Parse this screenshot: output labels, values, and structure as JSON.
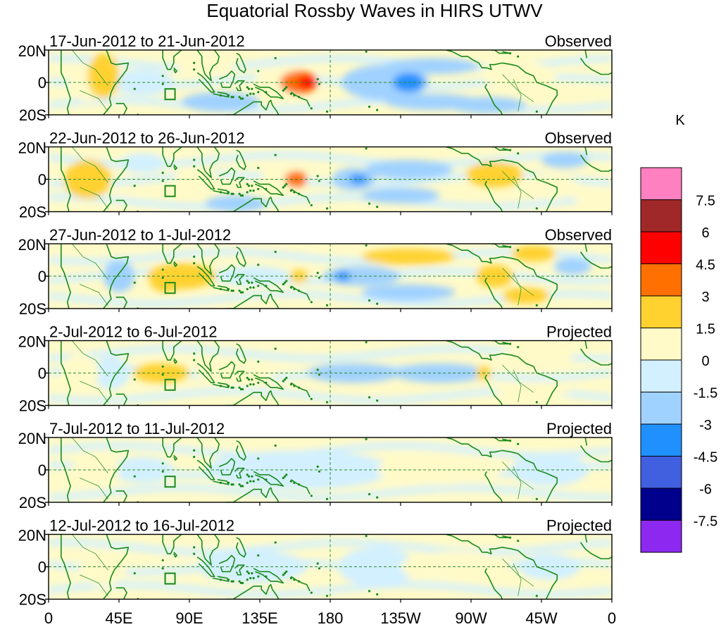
{
  "title": "Equatorial Rossby Waves in HIRS UTWV",
  "units": "K",
  "lat_labels": [
    "20N",
    "0",
    "20S"
  ],
  "lon_labels": [
    "0",
    "45E",
    "90E",
    "135E",
    "180",
    "135W",
    "90W",
    "45W",
    "0"
  ],
  "colorbar": {
    "labels": [
      "7.5",
      "6",
      "4.5",
      "3",
      "1.5",
      "0",
      "-1.5",
      "-3",
      "-4.5",
      "-6",
      "-7.5"
    ],
    "colors": [
      "#ff80c0",
      "#a02828",
      "#ff0000",
      "#ff7000",
      "#ffd230",
      "#fffac8",
      "#d2f0ff",
      "#a0d2ff",
      "#2090ff",
      "#4060e0",
      "#00008c",
      "#8c28f0"
    ]
  },
  "panels": [
    {
      "date": "17-Jun-2012 to 21-Jun-2012",
      "type": "Observed",
      "blobs": [
        {
          "lon": 150,
          "lat": 0,
          "rlon": 18,
          "rlat": 9,
          "value": 1.2
        },
        {
          "lon": 160,
          "lat": 0,
          "rlon": 12,
          "rlat": 7,
          "value": 3.6
        },
        {
          "lon": 165,
          "lat": 0,
          "rlon": 6,
          "rlat": 4,
          "value": 5.2
        },
        {
          "lon": 215,
          "lat": 0,
          "rlon": 28,
          "rlat": 11,
          "value": -2.2
        },
        {
          "lon": 230,
          "lat": 0,
          "rlon": 10,
          "rlat": 6,
          "value": -3.8
        },
        {
          "lon": 245,
          "lat": 10,
          "rlon": 30,
          "rlat": 5,
          "value": -1.6
        },
        {
          "lon": 245,
          "lat": -12,
          "rlon": 30,
          "rlat": 5,
          "value": -1.6
        },
        {
          "lon": 35,
          "lat": 4,
          "rlon": 10,
          "rlat": 14,
          "value": 1.8
        },
        {
          "lon": 25,
          "lat": 0,
          "rlon": 12,
          "rlat": 12,
          "value": 1.0
        },
        {
          "lon": 100,
          "lat": 12,
          "rlon": 20,
          "rlat": 6,
          "value": 0.9
        },
        {
          "lon": 110,
          "lat": -12,
          "rlon": 25,
          "rlat": 6,
          "value": -1.6
        },
        {
          "lon": 300,
          "lat": 5,
          "rlon": 25,
          "rlat": 8,
          "value": 0.9
        },
        {
          "lon": 60,
          "lat": 0,
          "rlon": 20,
          "rlat": 8,
          "value": -0.9
        },
        {
          "lon": 280,
          "lat": -14,
          "rlon": 25,
          "rlat": 5,
          "value": -1.6
        }
      ]
    },
    {
      "date": "22-Jun-2012 to 26-Jun-2012",
      "type": "Observed",
      "blobs": [
        {
          "lon": 150,
          "lat": 0,
          "rlon": 14,
          "rlat": 8,
          "value": 1.0
        },
        {
          "lon": 158,
          "lat": 0,
          "rlon": 7,
          "rlat": 5,
          "value": 3.6
        },
        {
          "lon": 195,
          "lat": 0,
          "rlon": 14,
          "rlat": 7,
          "value": -2.0
        },
        {
          "lon": 198,
          "lat": 0,
          "rlon": 6,
          "rlat": 3,
          "value": -3.4
        },
        {
          "lon": 230,
          "lat": 6,
          "rlon": 28,
          "rlat": 6,
          "value": -1.6
        },
        {
          "lon": 225,
          "lat": -10,
          "rlon": 25,
          "rlat": 5,
          "value": -1.6
        },
        {
          "lon": 25,
          "lat": 0,
          "rlon": 15,
          "rlat": 12,
          "value": 1.8
        },
        {
          "lon": 95,
          "lat": 0,
          "rlon": 15,
          "rlat": 5,
          "value": 1.2
        },
        {
          "lon": 285,
          "lat": 3,
          "rlon": 18,
          "rlat": 8,
          "value": 1.8
        },
        {
          "lon": 320,
          "lat": -5,
          "rlon": 20,
          "rlat": 8,
          "value": 1.0
        },
        {
          "lon": 60,
          "lat": 10,
          "rlon": 15,
          "rlat": 6,
          "value": -0.9
        },
        {
          "lon": 120,
          "lat": -15,
          "rlon": 20,
          "rlat": 5,
          "value": -1.6
        },
        {
          "lon": 330,
          "lat": 12,
          "rlon": 15,
          "rlat": 5,
          "value": -1.6
        },
        {
          "lon": 350,
          "lat": -10,
          "rlon": 15,
          "rlat": 6,
          "value": 1.0
        }
      ]
    },
    {
      "date": "27-Jun-2012 to 1-Jul-2012",
      "type": "Observed",
      "blobs": [
        {
          "lon": 85,
          "lat": 0,
          "rlon": 22,
          "rlat": 8,
          "value": 1.8
        },
        {
          "lon": 75,
          "lat": -4,
          "rlon": 10,
          "rlat": 6,
          "value": 2.0
        },
        {
          "lon": 200,
          "lat": 0,
          "rlon": 25,
          "rlat": 6,
          "value": -2.0
        },
        {
          "lon": 188,
          "lat": 0,
          "rlon": 5,
          "rlat": 3,
          "value": -3.4
        },
        {
          "lon": 230,
          "lat": -10,
          "rlon": 30,
          "rlat": 5,
          "value": -1.6
        },
        {
          "lon": 230,
          "lat": 12,
          "rlon": 30,
          "rlat": 5,
          "value": 1.8
        },
        {
          "lon": 285,
          "lat": 0,
          "rlon": 12,
          "rlat": 7,
          "value": 1.8
        },
        {
          "lon": 305,
          "lat": -12,
          "rlon": 15,
          "rlat": 5,
          "value": 2.0
        },
        {
          "lon": 310,
          "lat": 14,
          "rlon": 14,
          "rlat": 5,
          "value": 2.0
        },
        {
          "lon": 160,
          "lat": 0,
          "rlon": 6,
          "rlat": 4,
          "value": 1.8
        },
        {
          "lon": 45,
          "lat": 0,
          "rlon": 10,
          "rlat": 10,
          "value": -1.6
        },
        {
          "lon": 130,
          "lat": 0,
          "rlon": 25,
          "rlat": 6,
          "value": -0.9
        },
        {
          "lon": 335,
          "lat": 6,
          "rlon": 12,
          "rlat": 5,
          "value": -1.6
        }
      ]
    },
    {
      "date": "2-Jul-2012 to 6-Jul-2012",
      "type": "Projected",
      "blobs": [
        {
          "lon": 72,
          "lat": 0,
          "rlon": 18,
          "rlat": 6,
          "value": 1.8
        },
        {
          "lon": 120,
          "lat": 0,
          "rlon": 25,
          "rlat": 6,
          "value": 0.9
        },
        {
          "lon": 195,
          "lat": 0,
          "rlon": 30,
          "rlat": 6,
          "value": -1.6
        },
        {
          "lon": 250,
          "lat": 0,
          "rlon": 30,
          "rlat": 6,
          "value": -1.6
        },
        {
          "lon": 278,
          "lat": 0,
          "rlon": 5,
          "rlat": 4,
          "value": 1.8
        },
        {
          "lon": 40,
          "lat": 0,
          "rlon": 12,
          "rlat": 10,
          "value": -0.9
        },
        {
          "lon": 20,
          "lat": 0,
          "rlon": 12,
          "rlat": 12,
          "value": 1.0
        },
        {
          "lon": 310,
          "lat": 10,
          "rlon": 25,
          "rlat": 5,
          "value": 1.0
        },
        {
          "lon": 310,
          "lat": -10,
          "rlon": 25,
          "rlat": 5,
          "value": 1.0
        }
      ]
    },
    {
      "date": "7-Jul-2012 to 11-Jul-2012",
      "type": "Projected",
      "blobs": [
        {
          "lon": 160,
          "lat": 0,
          "rlon": 60,
          "rlat": 12,
          "value": -0.9
        },
        {
          "lon": 60,
          "lat": 0,
          "rlon": 20,
          "rlat": 8,
          "value": -0.9
        },
        {
          "lon": 30,
          "lat": 0,
          "rlon": 15,
          "rlat": 12,
          "value": 1.0
        },
        {
          "lon": 250,
          "lat": 0,
          "rlon": 40,
          "rlat": 10,
          "value": 1.0
        },
        {
          "lon": 320,
          "lat": 0,
          "rlon": 25,
          "rlat": 10,
          "value": -0.9
        }
      ]
    },
    {
      "date": "12-Jul-2012 to 16-Jul-2012",
      "type": "Projected",
      "blobs": [
        {
          "lon": 130,
          "lat": 0,
          "rlon": 35,
          "rlat": 10,
          "value": -0.9
        },
        {
          "lon": 210,
          "lat": 0,
          "rlon": 25,
          "rlat": 12,
          "value": -0.9
        },
        {
          "lon": 35,
          "lat": 0,
          "rlon": 15,
          "rlat": 12,
          "value": 1.0
        },
        {
          "lon": 260,
          "lat": 0,
          "rlon": 35,
          "rlat": 10,
          "value": 1.0
        },
        {
          "lon": 320,
          "lat": 0,
          "rlon": 20,
          "rlat": 8,
          "value": -0.9
        }
      ]
    }
  ]
}
